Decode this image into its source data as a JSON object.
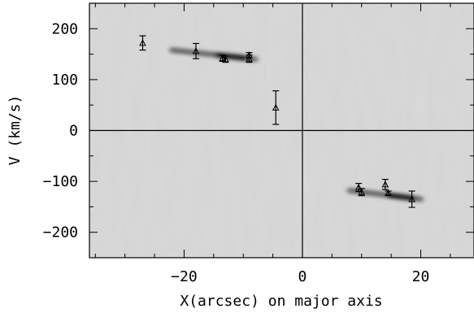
{
  "chart_data": {
    "type": "scatter",
    "title": "",
    "xlabel": "X(arcsec) on major axis",
    "ylabel": "V (km/s)",
    "xlim": [
      -36,
      29
    ],
    "ylim": [
      -250,
      250
    ],
    "xticks": [
      -20,
      0,
      20
    ],
    "yticks": [
      200,
      100,
      0,
      -100,
      -200
    ],
    "xtick_labels": [
      "−20",
      "0",
      "20"
    ],
    "ytick_labels": [
      "200",
      "100",
      "0",
      "−100",
      "−200"
    ],
    "reference_lines": {
      "x": 0,
      "y": 0
    },
    "background": "grayscale position-velocity diagram",
    "markers": "triangles with vertical error bars",
    "points": [
      {
        "x": -27.0,
        "y": 172,
        "yerr": 14
      },
      {
        "x": -18.0,
        "y": 156,
        "yerr": 15
      },
      {
        "x": -13.5,
        "y": 142,
        "yerr": 6
      },
      {
        "x": -13.0,
        "y": 140,
        "yerr": 6
      },
      {
        "x": -9.0,
        "y": 148,
        "yerr": 5
      },
      {
        "x": -9.0,
        "y": 141,
        "yerr": 7
      },
      {
        "x": -4.5,
        "y": 45,
        "yerr": 33
      },
      {
        "x": 9.5,
        "y": -112,
        "yerr": 8
      },
      {
        "x": 10.0,
        "y": -121,
        "yerr": 7
      },
      {
        "x": 14.0,
        "y": -106,
        "yerr": 10
      },
      {
        "x": 14.5,
        "y": -123,
        "yerr": 4
      },
      {
        "x": 18.5,
        "y": -135,
        "yerr": 16
      }
    ],
    "emission_bands": [
      {
        "x": [
          -22,
          -8
        ],
        "y": [
          158,
          140
        ]
      },
      {
        "x": [
          8,
          20
        ],
        "y": [
          -118,
          -135
        ]
      }
    ]
  }
}
